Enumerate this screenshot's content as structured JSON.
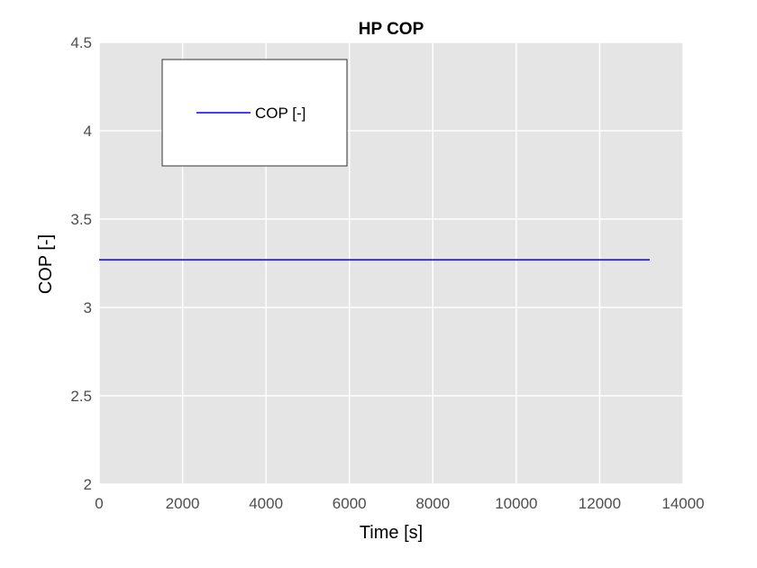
{
  "chart_data": {
    "type": "line",
    "title": "HP COP",
    "xlabel": "Time [s]",
    "ylabel": "COP [-]",
    "xlim": [
      0,
      14000
    ],
    "ylim": [
      2,
      4.5
    ],
    "xticks": [
      0,
      2000,
      4000,
      6000,
      8000,
      10000,
      12000,
      14000
    ],
    "xtick_labels": [
      "0",
      "2000",
      "4000",
      "6000",
      "8000",
      "10000",
      "12000",
      "14000"
    ],
    "yticks": [
      2,
      2.5,
      3,
      3.5,
      4,
      4.5
    ],
    "ytick_labels": [
      "2",
      "2.5",
      "3",
      "3.5",
      "4",
      "4.5"
    ],
    "grid": true,
    "legend": {
      "position": "top-left",
      "entries": [
        "COP [-]"
      ]
    },
    "series": [
      {
        "name": "COP [-]",
        "color": "#0000ff",
        "x": [
          0,
          13200
        ],
        "y": [
          3.27,
          3.27
        ]
      }
    ],
    "colors": {
      "plot_background": "#e5e5e5",
      "grid": "#ffffff"
    }
  }
}
